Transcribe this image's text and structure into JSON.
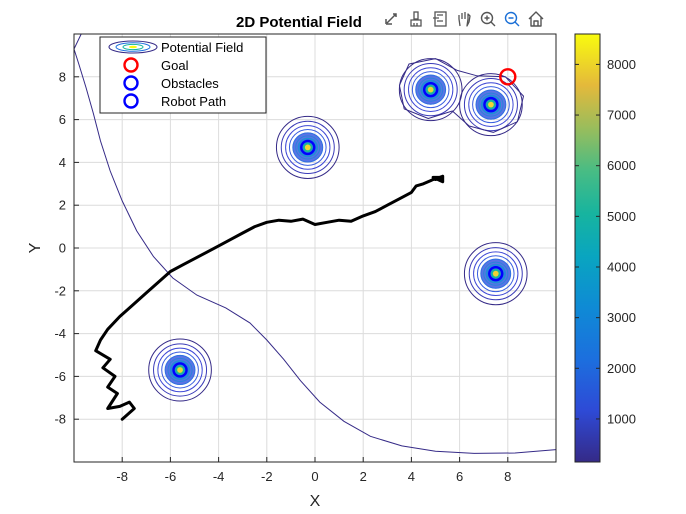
{
  "chart_data": {
    "type": "contour",
    "title": "2D Potential Field",
    "xlabel": "X",
    "ylabel": "Y",
    "xlim": [
      -10,
      10
    ],
    "ylim": [
      -10,
      10
    ],
    "x_ticks": [
      -8,
      -6,
      -4,
      -2,
      0,
      2,
      4,
      6,
      8
    ],
    "y_ticks": [
      -8,
      -6,
      -4,
      -2,
      0,
      2,
      4,
      6,
      8
    ],
    "grid": true,
    "legend_position": "top-left",
    "legend": [
      {
        "label": "Potential Field",
        "kind": "contour"
      },
      {
        "label": "Goal",
        "kind": "marker",
        "color": "#ff0000"
      },
      {
        "label": "Obstacles",
        "kind": "marker",
        "color": "#0000ff"
      },
      {
        "label": "Robot Path",
        "kind": "marker",
        "color": "#0000ff"
      }
    ],
    "goal": {
      "x": 8,
      "y": 8,
      "color": "#ff0000"
    },
    "obstacles": [
      {
        "x": -0.3,
        "y": 4.7
      },
      {
        "x": 4.8,
        "y": 7.4
      },
      {
        "x": 7.3,
        "y": 6.7
      },
      {
        "x": 7.5,
        "y": -1.2
      },
      {
        "x": -5.6,
        "y": -5.7
      }
    ],
    "robot_path": {
      "color": "#000000",
      "points": [
        [
          -8,
          -8
        ],
        [
          -7.5,
          -7.5
        ],
        [
          -7.7,
          -7.2
        ],
        [
          -8.1,
          -7.4
        ],
        [
          -8.6,
          -7.5
        ],
        [
          -8.2,
          -6.8
        ],
        [
          -8.6,
          -6.5
        ],
        [
          -8.3,
          -6.0
        ],
        [
          -8.8,
          -5.6
        ],
        [
          -8.5,
          -5.2
        ],
        [
          -9.1,
          -4.8
        ],
        [
          -8.9,
          -4.3
        ],
        [
          -8.6,
          -3.8
        ],
        [
          -8.1,
          -3.2
        ],
        [
          -7.5,
          -2.6
        ],
        [
          -7.0,
          -2.1
        ],
        [
          -6.5,
          -1.6
        ],
        [
          -6.0,
          -1.1
        ],
        [
          -5.5,
          -0.8
        ],
        [
          -5.0,
          -0.5
        ],
        [
          -4.5,
          -0.2
        ],
        [
          -4.0,
          0.1
        ],
        [
          -3.5,
          0.4
        ],
        [
          -3.0,
          0.7
        ],
        [
          -2.5,
          1.0
        ],
        [
          -2.0,
          1.2
        ],
        [
          -1.5,
          1.3
        ],
        [
          -1.0,
          1.25
        ],
        [
          -0.5,
          1.35
        ],
        [
          0.0,
          1.1
        ],
        [
          0.5,
          1.2
        ],
        [
          1.0,
          1.3
        ],
        [
          1.5,
          1.25
        ],
        [
          2.0,
          1.5
        ],
        [
          2.5,
          1.7
        ],
        [
          3.0,
          2.0
        ],
        [
          3.5,
          2.3
        ],
        [
          4.0,
          2.6
        ],
        [
          4.2,
          2.9
        ],
        [
          4.5,
          3.0
        ],
        [
          4.8,
          3.15
        ],
        [
          5.0,
          3.25
        ],
        [
          5.2,
          3.3
        ],
        [
          4.9,
          3.2
        ],
        [
          5.3,
          3.35
        ],
        [
          5.0,
          3.2
        ],
        [
          5.3,
          3.3
        ],
        [
          4.9,
          3.3
        ],
        [
          5.3,
          3.1
        ],
        [
          5.3,
          3.35
        ]
      ]
    },
    "colorbar": {
      "min": 150,
      "max": 8600,
      "ticks": [
        1000,
        2000,
        3000,
        4000,
        5000,
        6000,
        7000,
        8000
      ],
      "colormap": "parula"
    },
    "contour_lines": [
      {
        "name": "outer-left",
        "points": [
          [
            -9.7,
            10
          ],
          [
            -10,
            9.3
          ],
          [
            -9.8,
            8.6
          ],
          [
            -9.5,
            7.5
          ],
          [
            -9.2,
            6.3
          ],
          [
            -8.9,
            5.0
          ],
          [
            -8.5,
            3.6
          ],
          [
            -8.0,
            2.2
          ],
          [
            -7.4,
            0.8
          ],
          [
            -6.7,
            -0.4
          ],
          [
            -5.9,
            -1.4
          ],
          [
            -4.9,
            -2.2
          ],
          [
            -3.7,
            -2.8
          ],
          [
            -2.7,
            -3.5
          ],
          [
            -2.0,
            -4.3
          ],
          [
            -1.3,
            -5.2
          ],
          [
            -0.6,
            -6.2
          ],
          [
            0.2,
            -7.2
          ],
          [
            1.2,
            -8.1
          ],
          [
            2.3,
            -8.8
          ],
          [
            3.6,
            -9.25
          ],
          [
            5.0,
            -9.5
          ],
          [
            6.6,
            -9.6
          ],
          [
            8.3,
            -9.58
          ],
          [
            10,
            -9.42
          ]
        ]
      }
    ]
  },
  "toolbar": {
    "icons": [
      "export-icon",
      "brush-icon",
      "datatip-icon",
      "pan-icon",
      "zoom-in-icon",
      "zoom-out-icon",
      "home-icon"
    ]
  }
}
